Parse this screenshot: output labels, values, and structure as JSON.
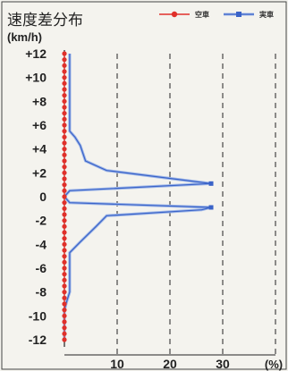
{
  "chart_data": {
    "type": "line",
    "title": "速度差分布",
    "ylabel": "(km/h)",
    "xlabel": "(%)",
    "y_ticks": [
      "+12",
      "+10",
      "+8",
      "+6",
      "+4",
      "+2",
      "0",
      "-2",
      "-4",
      "-6",
      "-8",
      "-10",
      "-12"
    ],
    "x_ticks": [
      "10",
      "20",
      "30"
    ],
    "x_unit_label": "(%)",
    "xlim": [
      0,
      38
    ],
    "ylim": [
      -12,
      12
    ],
    "grid": "vertical dashed",
    "legend_position": "top-right",
    "series": [
      {
        "name": "空車",
        "color": "#e0302a",
        "marker": "circle",
        "points": [
          [
            0,
            12
          ],
          [
            0,
            11.5
          ],
          [
            0,
            11
          ],
          [
            0,
            10.5
          ],
          [
            0,
            10
          ],
          [
            0,
            9.5
          ],
          [
            0,
            9
          ],
          [
            0,
            8.5
          ],
          [
            0,
            8
          ],
          [
            0,
            7.5
          ],
          [
            0,
            7
          ],
          [
            0,
            6.5
          ],
          [
            0,
            6
          ],
          [
            0,
            5.5
          ],
          [
            0,
            5
          ],
          [
            0,
            4.5
          ],
          [
            0,
            4
          ],
          [
            0,
            3.5
          ],
          [
            0,
            3
          ],
          [
            0,
            2.5
          ],
          [
            0,
            2
          ],
          [
            0,
            1.5
          ],
          [
            0,
            1
          ],
          [
            0,
            0.5
          ],
          [
            0,
            0
          ],
          [
            0,
            -0.5
          ],
          [
            0,
            -1
          ],
          [
            0,
            -1.5
          ],
          [
            0,
            -2
          ],
          [
            0,
            -2.5
          ],
          [
            0,
            -3
          ],
          [
            0,
            -3.5
          ],
          [
            0,
            -4
          ],
          [
            0,
            -4.5
          ],
          [
            0,
            -5
          ],
          [
            0,
            -5.5
          ],
          [
            0,
            -6
          ],
          [
            0,
            -6.5
          ],
          [
            0,
            -7
          ],
          [
            0,
            -7.5
          ],
          [
            0,
            -8
          ],
          [
            0,
            -8.5
          ],
          [
            0,
            -9
          ],
          [
            0,
            -9.5
          ],
          [
            0,
            -10
          ],
          [
            0,
            -10.5
          ],
          [
            0,
            -11
          ],
          [
            0,
            -11.5
          ],
          [
            0,
            -12
          ]
        ]
      },
      {
        "name": "実車",
        "color": "#3a63c8",
        "marker": "square",
        "points": [
          [
            1,
            12
          ],
          [
            1,
            11
          ],
          [
            1,
            10
          ],
          [
            1,
            9
          ],
          [
            1,
            8
          ],
          [
            1,
            7
          ],
          [
            1,
            6
          ],
          [
            1,
            5.5
          ],
          [
            2,
            5
          ],
          [
            3,
            4.3
          ],
          [
            4,
            3
          ],
          [
            8,
            2.2
          ],
          [
            26,
            1.2
          ],
          [
            27.8,
            1.1
          ],
          [
            1,
            0.5
          ],
          [
            0,
            0
          ],
          [
            1,
            -0.5
          ],
          [
            27.8,
            -0.9
          ],
          [
            26,
            -1.1
          ],
          [
            8,
            -1.6
          ],
          [
            6,
            -2.5
          ],
          [
            3,
            -3.8
          ],
          [
            1,
            -4.7
          ],
          [
            1,
            -5.5
          ],
          [
            1,
            -6
          ],
          [
            1,
            -7
          ],
          [
            1,
            -8
          ],
          [
            0.5,
            -8.7
          ],
          [
            0,
            -9.5
          ],
          [
            0,
            -10
          ],
          [
            0,
            -11
          ],
          [
            0,
            -12
          ]
        ]
      }
    ]
  }
}
